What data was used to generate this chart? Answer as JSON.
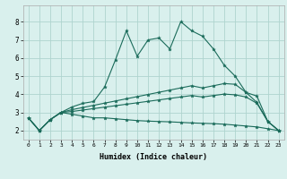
{
  "xlabel": "Humidex (Indice chaleur)",
  "background_color": "#d9f0ed",
  "grid_color": "#aed4cf",
  "line_color": "#1a6b5a",
  "xlim": [
    -0.5,
    23.5
  ],
  "ylim": [
    1.5,
    8.9
  ],
  "xticks": [
    0,
    1,
    2,
    3,
    4,
    5,
    6,
    7,
    8,
    9,
    10,
    11,
    12,
    13,
    14,
    15,
    16,
    17,
    18,
    19,
    20,
    21,
    22,
    23
  ],
  "yticks": [
    2,
    3,
    4,
    5,
    6,
    7,
    8
  ],
  "series": [
    [
      2.7,
      2.0,
      2.6,
      3.0,
      3.3,
      3.5,
      3.6,
      4.4,
      5.9,
      7.5,
      6.1,
      7.0,
      7.1,
      6.5,
      8.0,
      7.5,
      7.2,
      6.5,
      5.6,
      5.0,
      4.1,
      3.9,
      2.5,
      2.0
    ],
    [
      2.7,
      2.0,
      2.6,
      3.0,
      3.15,
      3.27,
      3.39,
      3.51,
      3.63,
      3.75,
      3.87,
      3.99,
      4.11,
      4.23,
      4.35,
      4.47,
      4.35,
      4.47,
      4.59,
      4.55,
      4.1,
      3.55,
      2.5,
      2.0
    ],
    [
      2.7,
      2.0,
      2.6,
      3.0,
      3.05,
      3.13,
      3.21,
      3.29,
      3.37,
      3.45,
      3.53,
      3.61,
      3.69,
      3.77,
      3.85,
      3.93,
      3.85,
      3.93,
      4.01,
      3.97,
      3.85,
      3.5,
      2.5,
      2.0
    ],
    [
      2.7,
      2.0,
      2.6,
      3.0,
      2.9,
      2.8,
      2.7,
      2.7,
      2.65,
      2.6,
      2.55,
      2.52,
      2.5,
      2.48,
      2.45,
      2.42,
      2.4,
      2.38,
      2.35,
      2.3,
      2.25,
      2.2,
      2.1,
      2.0
    ]
  ]
}
